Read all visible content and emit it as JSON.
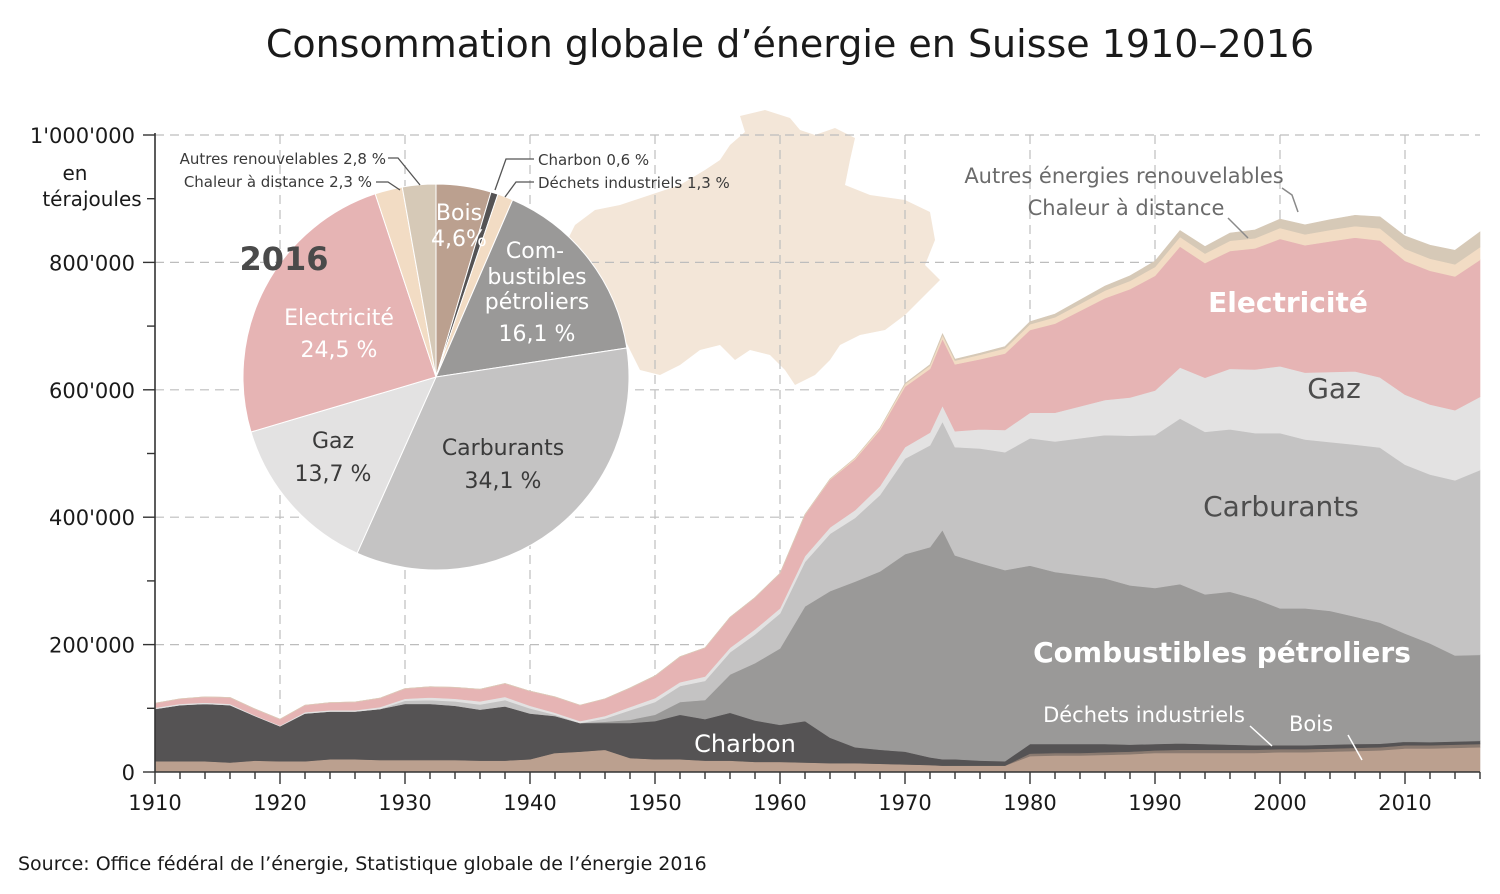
{
  "title": "Consommation globale d’énergie en Suisse 1910–2016",
  "source": "Source: Office fédéral de l’énergie, Statistique globale de l’énergie 2016",
  "chart_data": [
    {
      "type": "area",
      "stacked": true,
      "ylabel": "en térajoules",
      "ylim": [
        0,
        1000000
      ],
      "y_ticks": [
        "0",
        "200'000",
        "400'000",
        "600'000",
        "800'000",
        "1'000'000"
      ],
      "xlim": [
        1910,
        2016
      ],
      "x_ticks": [
        "1910",
        "1920",
        "1930",
        "1940",
        "1950",
        "1960",
        "1970",
        "1980",
        "1990",
        "2000",
        "2010"
      ],
      "grid": true,
      "x": [
        1910,
        1912,
        1914,
        1916,
        1918,
        1920,
        1922,
        1924,
        1926,
        1928,
        1930,
        1932,
        1934,
        1936,
        1938,
        1940,
        1942,
        1944,
        1946,
        1948,
        1950,
        1952,
        1954,
        1956,
        1958,
        1960,
        1962,
        1964,
        1966,
        1968,
        1970,
        1972,
        1973,
        1974,
        1976,
        1978,
        1980,
        1982,
        1984,
        1986,
        1988,
        1990,
        1992,
        1994,
        1996,
        1998,
        2000,
        2002,
        2004,
        2006,
        2008,
        2010,
        2012,
        2014,
        2016
      ],
      "series": [
        {
          "name": "Bois",
          "color": "#bba08f",
          "values": [
            17000,
            17000,
            17000,
            15000,
            18000,
            17000,
            17000,
            20000,
            20000,
            19000,
            19000,
            19000,
            19000,
            18000,
            18000,
            20000,
            30000,
            32000,
            35000,
            22000,
            20000,
            20000,
            18000,
            18000,
            16000,
            16000,
            15000,
            14000,
            14000,
            13000,
            12000,
            11000,
            10000,
            10000,
            10000,
            10000,
            25000,
            26000,
            26000,
            27000,
            28000,
            30000,
            30000,
            30000,
            30000,
            30000,
            31000,
            31000,
            32000,
            33000,
            34000,
            37000,
            37000,
            38000,
            39000
          ]
        },
        {
          "name": "Déchets industriels",
          "color": "#8a7a70",
          "values": [
            0,
            0,
            0,
            0,
            0,
            0,
            0,
            0,
            0,
            0,
            0,
            0,
            0,
            0,
            0,
            0,
            0,
            0,
            0,
            0,
            0,
            0,
            0,
            0,
            0,
            0,
            0,
            0,
            0,
            0,
            0,
            0,
            0,
            0,
            0,
            0,
            4000,
            4000,
            4000,
            4000,
            4000,
            4000,
            5000,
            5000,
            5000,
            5000,
            5000,
            5000,
            5000,
            5000,
            5000,
            5000,
            5000,
            5000,
            5000
          ]
        },
        {
          "name": "Charbon",
          "color": "#555354",
          "values": [
            82000,
            88000,
            90000,
            90000,
            70000,
            55000,
            75000,
            75000,
            75000,
            80000,
            88000,
            88000,
            85000,
            80000,
            85000,
            72000,
            58000,
            45000,
            42000,
            55000,
            60000,
            70000,
            65000,
            75000,
            65000,
            58000,
            65000,
            40000,
            25000,
            22000,
            20000,
            12000,
            10000,
            10000,
            8000,
            7000,
            15000,
            14000,
            14000,
            13000,
            11000,
            10000,
            10000,
            9000,
            8000,
            7000,
            6000,
            6000,
            6000,
            6000,
            5500,
            5500,
            5000,
            5000,
            5000
          ]
        },
        {
          "name": "Combustibles pétroliers",
          "color": "#9a9998",
          "values": [
            0,
            0,
            0,
            0,
            0,
            0,
            0,
            0,
            0,
            0,
            0,
            0,
            0,
            0,
            0,
            0,
            0,
            0,
            2000,
            5000,
            10000,
            20000,
            30000,
            60000,
            90000,
            120000,
            180000,
            230000,
            260000,
            280000,
            310000,
            330000,
            360000,
            320000,
            310000,
            300000,
            280000,
            270000,
            265000,
            260000,
            250000,
            245000,
            250000,
            235000,
            240000,
            230000,
            215000,
            215000,
            210000,
            200000,
            190000,
            170000,
            155000,
            135000,
            135000
          ]
        },
        {
          "name": "Carburants",
          "color": "#c4c3c3",
          "values": [
            0,
            0,
            0,
            0,
            0,
            0,
            0,
            0,
            0,
            0,
            5000,
            6000,
            7000,
            8000,
            10000,
            8000,
            2000,
            0,
            5000,
            15000,
            20000,
            25000,
            30000,
            35000,
            45000,
            55000,
            70000,
            90000,
            100000,
            120000,
            150000,
            160000,
            170000,
            170000,
            180000,
            185000,
            200000,
            205000,
            215000,
            225000,
            235000,
            240000,
            260000,
            255000,
            255000,
            260000,
            275000,
            265000,
            265000,
            270000,
            275000,
            265000,
            265000,
            275000,
            290000
          ]
        },
        {
          "name": "Gaz",
          "color": "#e3e2e2",
          "values": [
            2000,
            2000,
            2000,
            2000,
            1000,
            1000,
            2000,
            2000,
            2000,
            3000,
            3000,
            4000,
            4000,
            5000,
            5000,
            4000,
            3000,
            3000,
            4000,
            5000,
            6000,
            6000,
            7000,
            7000,
            8000,
            8000,
            9000,
            10000,
            12000,
            14000,
            18000,
            20000,
            25000,
            25000,
            30000,
            35000,
            40000,
            45000,
            50000,
            55000,
            60000,
            70000,
            80000,
            85000,
            95000,
            100000,
            105000,
            105000,
            110000,
            115000,
            110000,
            110000,
            110000,
            110000,
            115000
          ]
        },
        {
          "name": "Electricité",
          "color": "#e6b4b4",
          "values": [
            7000,
            8000,
            9000,
            10000,
            10000,
            10000,
            11000,
            12000,
            13000,
            14000,
            16000,
            17000,
            18000,
            19000,
            21000,
            23000,
            25000,
            25000,
            27000,
            30000,
            35000,
            40000,
            45000,
            48000,
            50000,
            55000,
            65000,
            75000,
            80000,
            88000,
            95000,
            100000,
            105000,
            105000,
            110000,
            120000,
            130000,
            140000,
            150000,
            160000,
            170000,
            180000,
            190000,
            180000,
            185000,
            190000,
            200000,
            200000,
            205000,
            210000,
            215000,
            210000,
            210000,
            210000,
            215000
          ]
        },
        {
          "name": "Chaleur à distance",
          "color": "#f2dcc4",
          "values": [
            0,
            0,
            0,
            0,
            0,
            0,
            0,
            0,
            0,
            0,
            0,
            0,
            0,
            0,
            0,
            0,
            0,
            0,
            0,
            0,
            0,
            0,
            0,
            0,
            0,
            0,
            500,
            1000,
            2000,
            3000,
            4000,
            5000,
            6000,
            6000,
            7000,
            8000,
            9000,
            10000,
            11000,
            12000,
            13000,
            14000,
            15000,
            15000,
            16000,
            16000,
            17000,
            17000,
            18000,
            18000,
            19000,
            19000,
            19000,
            19000,
            20000
          ]
        },
        {
          "name": "Autres énergies renouvelables",
          "color": "#d6c9b7",
          "values": [
            0,
            0,
            0,
            0,
            0,
            0,
            0,
            0,
            0,
            0,
            0,
            0,
            0,
            0,
            0,
            0,
            0,
            0,
            0,
            0,
            0,
            0,
            0,
            0,
            0,
            0,
            0,
            0,
            0,
            0,
            1000,
            1500,
            2000,
            2000,
            2500,
            3000,
            4000,
            5000,
            6000,
            7000,
            8000,
            9000,
            10000,
            11000,
            12000,
            13000,
            14000,
            15000,
            16000,
            17000,
            18000,
            20000,
            21000,
            22000,
            24000
          ]
        }
      ],
      "area_labels": [
        "Electricité",
        "Gaz",
        "Carburants",
        "Combustibles pétroliers",
        "Charbon",
        "Déchets industriels",
        "Bois",
        "Autres énergies renouvelables",
        "Chaleur à distance"
      ]
    },
    {
      "type": "pie",
      "title": "2016",
      "slices": [
        {
          "name": "Bois",
          "label": "Bois",
          "value_label": "4,6%",
          "value": 4.6,
          "color": "#bba08f"
        },
        {
          "name": "Charbon",
          "label": "Charbon 0,6 %",
          "value": 0.6,
          "color": "#555354"
        },
        {
          "name": "Déchets industriels",
          "label": "Déchets industriels 1,3 %",
          "value": 1.3,
          "color": "#f2dcc4"
        },
        {
          "name": "Combustibles pétroliers",
          "label": "Com-",
          "label2": "bustibles",
          "label3": "pétroliers",
          "value_label": "16,1 %",
          "value": 16.1,
          "color": "#9a9998"
        },
        {
          "name": "Carburants",
          "label": "Carburants",
          "value_label": "34,1 %",
          "value": 34.1,
          "color": "#c4c3c3"
        },
        {
          "name": "Gaz",
          "label": "Gaz",
          "value_label": "13,7 %",
          "value": 13.7,
          "color": "#e3e2e2"
        },
        {
          "name": "Electricité",
          "label": "Electricité",
          "value_label": "24,5 %",
          "value": 24.5,
          "color": "#e6b4b4"
        },
        {
          "name": "Chaleur à distance",
          "label": "Chaleur à distance 2,3 %",
          "value": 2.3,
          "color": "#f2dcc4"
        },
        {
          "name": "Autres renouvelables",
          "label": "Autres renouvelables 2,8 %",
          "value": 2.8,
          "color": "#d6c9b7"
        }
      ]
    }
  ],
  "colors": {
    "map": "#f3e6d8",
    "grid": "#bdbdbd",
    "axis": "#333333"
  }
}
